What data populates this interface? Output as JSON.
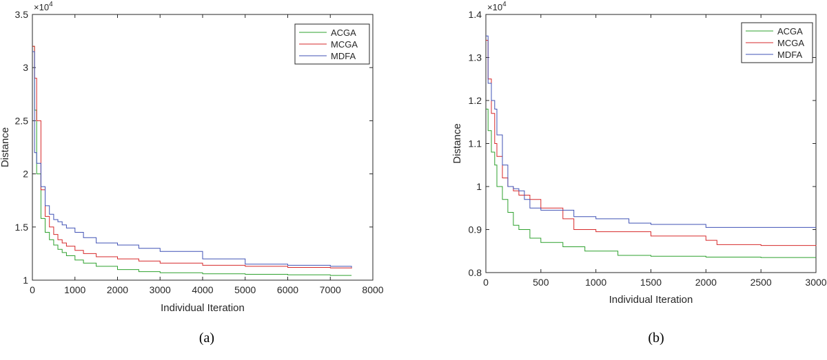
{
  "chart_data": [
    {
      "type": "line",
      "caption": "(a)",
      "xlabel": "Individual Iteration",
      "ylabel": "Distance",
      "exponent": "×10",
      "exponent_power": "4",
      "xlim": [
        0,
        8000
      ],
      "ylim": [
        1.0,
        3.5
      ],
      "xticks": [
        0,
        1000,
        2000,
        3000,
        4000,
        5000,
        6000,
        7000,
        8000
      ],
      "xtick_labels": [
        "0",
        "1000",
        "2000",
        "3000",
        "4000",
        "5000",
        "6000",
        "7000",
        "8000"
      ],
      "yticks": [
        1.0,
        1.5,
        2.0,
        2.5,
        3.0,
        3.5
      ],
      "ytick_labels": [
        "1",
        "1.5",
        "2",
        "2.5",
        "3",
        "3.5"
      ],
      "legend_position": "top-right",
      "series": [
        {
          "name": "ACGA",
          "color": "#2ca02c",
          "x": [
            0,
            50,
            100,
            200,
            300,
            400,
            500,
            600,
            700,
            800,
            1000,
            1200,
            1500,
            2000,
            2500,
            3000,
            4000,
            5000,
            6000,
            7000,
            7500
          ],
          "y": [
            3.2,
            2.6,
            2.0,
            1.58,
            1.45,
            1.38,
            1.33,
            1.29,
            1.26,
            1.23,
            1.19,
            1.16,
            1.13,
            1.1,
            1.08,
            1.07,
            1.06,
            1.055,
            1.05,
            1.045,
            1.045
          ]
        },
        {
          "name": "MCGA",
          "color": "#d62728",
          "x": [
            0,
            50,
            100,
            200,
            300,
            400,
            500,
            600,
            700,
            800,
            1000,
            1200,
            1500,
            2000,
            2500,
            3000,
            4000,
            5000,
            6000,
            7000,
            7500
          ],
          "y": [
            3.2,
            2.9,
            2.5,
            1.85,
            1.6,
            1.5,
            1.43,
            1.38,
            1.35,
            1.32,
            1.28,
            1.25,
            1.22,
            1.2,
            1.18,
            1.16,
            1.14,
            1.13,
            1.12,
            1.115,
            1.11
          ]
        },
        {
          "name": "MDFA",
          "color": "#3f51b5",
          "x": [
            0,
            50,
            100,
            200,
            300,
            400,
            500,
            600,
            700,
            800,
            1000,
            1200,
            1500,
            2000,
            2500,
            3000,
            4000,
            5000,
            6000,
            7000,
            7500
          ],
          "y": [
            3.15,
            2.2,
            2.1,
            1.88,
            1.7,
            1.62,
            1.57,
            1.55,
            1.52,
            1.49,
            1.45,
            1.4,
            1.35,
            1.33,
            1.3,
            1.27,
            1.2,
            1.15,
            1.14,
            1.13,
            1.12
          ]
        }
      ]
    },
    {
      "type": "line",
      "caption": "(b)",
      "xlabel": "Individual Iteration",
      "ylabel": "Distance",
      "exponent": "×10",
      "exponent_power": "4",
      "xlim": [
        0,
        3000
      ],
      "ylim": [
        0.8,
        1.4
      ],
      "xticks": [
        0,
        500,
        1000,
        1500,
        2000,
        2500,
        3000
      ],
      "xtick_labels": [
        "0",
        "500",
        "1000",
        "1500",
        "2000",
        "2500",
        "3000"
      ],
      "yticks": [
        0.8,
        0.9,
        1.0,
        1.1,
        1.2,
        1.3,
        1.4
      ],
      "ytick_labels": [
        "0.8",
        "0.9",
        "1",
        "1.1",
        "1.2",
        "1.3",
        "1.4"
      ],
      "legend_position": "top-right",
      "series": [
        {
          "name": "ACGA",
          "color": "#2ca02c",
          "x": [
            0,
            20,
            50,
            80,
            100,
            150,
            200,
            250,
            300,
            400,
            500,
            700,
            900,
            1200,
            1500,
            2000,
            2500,
            3000
          ],
          "y": [
            1.18,
            1.13,
            1.08,
            1.05,
            1.0,
            0.97,
            0.94,
            0.91,
            0.9,
            0.88,
            0.87,
            0.86,
            0.85,
            0.84,
            0.838,
            0.836,
            0.835,
            0.835
          ]
        },
        {
          "name": "MCGA",
          "color": "#d62728",
          "x": [
            0,
            20,
            50,
            80,
            100,
            150,
            200,
            250,
            300,
            400,
            500,
            700,
            800,
            1000,
            1500,
            2000,
            2100,
            2500,
            3000
          ],
          "y": [
            1.34,
            1.25,
            1.17,
            1.1,
            1.07,
            1.02,
            1.0,
            0.99,
            0.98,
            0.97,
            0.95,
            0.925,
            0.9,
            0.895,
            0.885,
            0.875,
            0.865,
            0.863,
            0.862
          ]
        },
        {
          "name": "MDFA",
          "color": "#3f51b5",
          "x": [
            0,
            20,
            50,
            80,
            100,
            150,
            200,
            250,
            300,
            350,
            400,
            500,
            600,
            700,
            800,
            1000,
            1300,
            1500,
            2000,
            2500,
            3000
          ],
          "y": [
            1.35,
            1.24,
            1.2,
            1.18,
            1.12,
            1.05,
            1.0,
            0.995,
            0.99,
            0.97,
            0.95,
            0.945,
            0.945,
            0.945,
            0.93,
            0.925,
            0.915,
            0.912,
            0.905,
            0.905,
            0.905
          ]
        }
      ]
    }
  ]
}
